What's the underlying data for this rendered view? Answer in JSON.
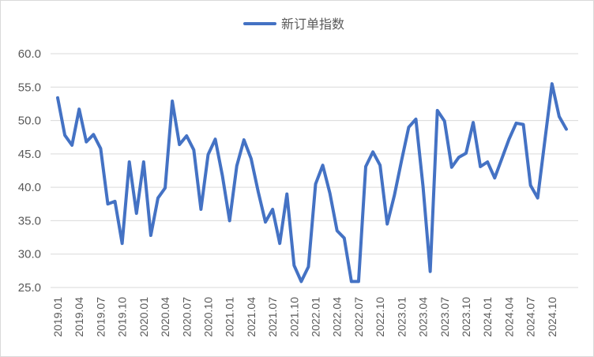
{
  "chart_data": {
    "type": "line",
    "legend": {
      "position": "top",
      "label": "新订单指数"
    },
    "color": "#4472C4",
    "ylim": [
      25.0,
      60.0
    ],
    "yticks": [
      "25.0",
      "30.0",
      "35.0",
      "40.0",
      "45.0",
      "50.0",
      "55.0",
      "60.0"
    ],
    "grid": "horizontal",
    "xtick_labels": [
      "2019.01",
      "2019.04",
      "2019.07",
      "2019.10",
      "2020.01",
      "2020.04",
      "2020.07",
      "2020.10",
      "2021.01",
      "2021.04",
      "2021.07",
      "2021.10",
      "2022.01",
      "2022.04",
      "2022.07",
      "2022.10",
      "2023.01",
      "2023.04",
      "2023.07",
      "2023.10",
      "2024.01",
      "2024.04",
      "2024.07",
      "2024.10"
    ],
    "series": [
      {
        "name": "新订单指数",
        "x": [
          "2019.01",
          "2019.02",
          "2019.03",
          "2019.04",
          "2019.05",
          "2019.06",
          "2019.07",
          "2019.08",
          "2019.09",
          "2019.10",
          "2019.11",
          "2019.12",
          "2020.01",
          "2020.02",
          "2020.03",
          "2020.04",
          "2020.05",
          "2020.06",
          "2020.07",
          "2020.08",
          "2020.09",
          "2020.10",
          "2020.11",
          "2020.12",
          "2021.01",
          "2021.02",
          "2021.03",
          "2021.04",
          "2021.05",
          "2021.06",
          "2021.07",
          "2021.08",
          "2021.09",
          "2021.10",
          "2021.11",
          "2021.12",
          "2022.01",
          "2022.02",
          "2022.03",
          "2022.04",
          "2022.05",
          "2022.06",
          "2022.07",
          "2022.08",
          "2022.09",
          "2022.10",
          "2022.11",
          "2022.12",
          "2023.01",
          "2023.02",
          "2023.03",
          "2023.04",
          "2023.05",
          "2023.06",
          "2023.07",
          "2023.08",
          "2023.09",
          "2023.10",
          "2023.11",
          "2023.12",
          "2024.01",
          "2024.02",
          "2024.03",
          "2024.04",
          "2024.05",
          "2024.06",
          "2024.07",
          "2024.08",
          "2024.09",
          "2024.10",
          "2024.11",
          "2024.12"
        ],
        "values": [
          53.4,
          47.8,
          46.3,
          51.7,
          46.8,
          47.9,
          45.8,
          37.5,
          37.9,
          31.6,
          43.8,
          36.1,
          43.8,
          32.8,
          38.4,
          39.9,
          52.9,
          46.4,
          47.7,
          45.6,
          36.7,
          44.9,
          47.2,
          41.7,
          35.0,
          43.2,
          47.1,
          44.3,
          39.3,
          34.8,
          36.7,
          31.6,
          39.0,
          28.3,
          25.9,
          28.1,
          40.5,
          43.3,
          39.1,
          33.5,
          32.4,
          25.9,
          25.9,
          43.1,
          45.3,
          43.3,
          34.5,
          38.8,
          44.0,
          49.0,
          50.2,
          40.1,
          27.4,
          51.5,
          49.9,
          43.0,
          44.5,
          45.1,
          49.7,
          43.1,
          43.8,
          41.4,
          44.3,
          47.2,
          49.6,
          49.4,
          40.3,
          38.4,
          47.0,
          55.5,
          50.6,
          48.7
        ]
      }
    ]
  }
}
